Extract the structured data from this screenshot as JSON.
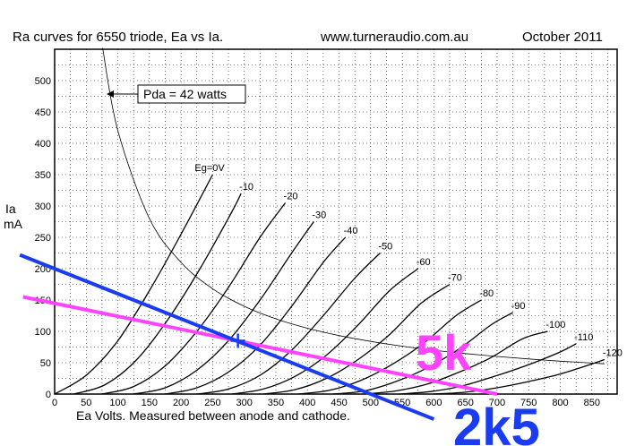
{
  "header": {
    "title": "Ra curves for 6550 triode, Ea vs Ia.",
    "website": "www.turneraudio.com.au",
    "date": "October 2011"
  },
  "chart_data": {
    "type": "line",
    "xlabel": "Ea Volts. Measured between anode and cathode.",
    "ylabel_line1": "Ia",
    "ylabel_line2": "mA",
    "xlim": [
      0,
      890
    ],
    "ylim": [
      0,
      550
    ],
    "xticks": [
      "0",
      "50",
      "100",
      "150",
      "200",
      "250",
      "300",
      "350",
      "400",
      "450",
      "500",
      "550",
      "600",
      "650",
      "700",
      "750",
      "800",
      "850"
    ],
    "xtick_values": [
      0,
      50,
      100,
      150,
      200,
      250,
      300,
      350,
      400,
      450,
      500,
      550,
      600,
      650,
      700,
      750,
      800,
      850
    ],
    "yticks": [
      "0",
      "50",
      "100",
      "150",
      "200",
      "250",
      "300",
      "350",
      "400",
      "450",
      "500"
    ],
    "ytick_values": [
      0,
      50,
      100,
      150,
      200,
      250,
      300,
      350,
      400,
      450,
      500
    ],
    "grid": true,
    "curve_labels": [
      "Eg=0V",
      "-10",
      "-20",
      "-30",
      "-40",
      "-50",
      "-60",
      "-70",
      "-80",
      "-90",
      "-100",
      "-110",
      "-120"
    ],
    "grid_curves": [
      {
        "eg": 0,
        "x": [
          0,
          50,
          100,
          150,
          200,
          250
        ],
        "y": [
          0,
          30,
          85,
          165,
          255,
          350
        ]
      },
      {
        "eg": -10,
        "x": [
          30,
          80,
          130,
          180,
          230,
          280,
          295
        ],
        "y": [
          0,
          15,
          55,
          120,
          200,
          290,
          320
        ]
      },
      {
        "eg": -20,
        "x": [
          75,
          125,
          175,
          225,
          275,
          325,
          365
        ],
        "y": [
          0,
          12,
          45,
          100,
          170,
          250,
          305
        ]
      },
      {
        "eg": -30,
        "x": [
          125,
          175,
          225,
          275,
          325,
          375,
          410
        ],
        "y": [
          0,
          10,
          38,
          85,
          150,
          225,
          275
        ]
      },
      {
        "eg": -40,
        "x": [
          175,
          225,
          275,
          325,
          375,
          425,
          460
        ],
        "y": [
          0,
          10,
          35,
          78,
          140,
          210,
          250
        ]
      },
      {
        "eg": -50,
        "x": [
          225,
          275,
          325,
          375,
          425,
          475,
          515
        ],
        "y": [
          0,
          8,
          30,
          70,
          125,
          185,
          225
        ]
      },
      {
        "eg": -60,
        "x": [
          280,
          330,
          380,
          430,
          480,
          530,
          575
        ],
        "y": [
          0,
          8,
          28,
          62,
          110,
          165,
          200
        ]
      },
      {
        "eg": -70,
        "x": [
          330,
          380,
          430,
          480,
          530,
          580,
          625
        ],
        "y": [
          0,
          7,
          25,
          55,
          95,
          145,
          175
        ]
      },
      {
        "eg": -80,
        "x": [
          385,
          435,
          485,
          535,
          585,
          635,
          675
        ],
        "y": [
          0,
          6,
          22,
          48,
          82,
          125,
          150
        ]
      },
      {
        "eg": -90,
        "x": [
          440,
          490,
          540,
          590,
          640,
          690,
          725
        ],
        "y": [
          0,
          5,
          20,
          42,
          72,
          110,
          130
        ]
      },
      {
        "eg": -100,
        "x": [
          490,
          540,
          590,
          640,
          690,
          740,
          780
        ],
        "y": [
          0,
          5,
          16,
          35,
          58,
          88,
          100
        ]
      },
      {
        "eg": -110,
        "x": [
          545,
          595,
          645,
          695,
          745,
          795,
          825
        ],
        "y": [
          0,
          4,
          13,
          28,
          45,
          65,
          80
        ]
      },
      {
        "eg": -120,
        "x": [
          600,
          650,
          700,
          750,
          800,
          850,
          870
        ],
        "y": [
          0,
          3,
          10,
          20,
          32,
          48,
          55
        ]
      }
    ],
    "pda_curve": {
      "label": "Pda = 42 watts",
      "watts": 42,
      "x": [
        76,
        100,
        150,
        200,
        250,
        300,
        350,
        400,
        450,
        500,
        550,
        600,
        650,
        700,
        750,
        800,
        850,
        870
      ],
      "y": [
        552,
        420,
        280,
        210,
        168,
        140,
        120,
        105,
        93.3,
        84,
        76.4,
        70,
        64.6,
        60,
        56,
        52.5,
        49.4,
        48.3
      ]
    },
    "load_lines": [
      {
        "label": "5k",
        "color": "#ff44ff",
        "x": [
          -50,
          700
        ],
        "y": [
          155,
          0
        ]
      },
      {
        "label": "2k5",
        "color": "#1a3cf0",
        "x": [
          -55,
          600
        ],
        "y": [
          222,
          -40
        ]
      }
    ],
    "operating_point": {
      "x": 290,
      "y": 85
    }
  }
}
